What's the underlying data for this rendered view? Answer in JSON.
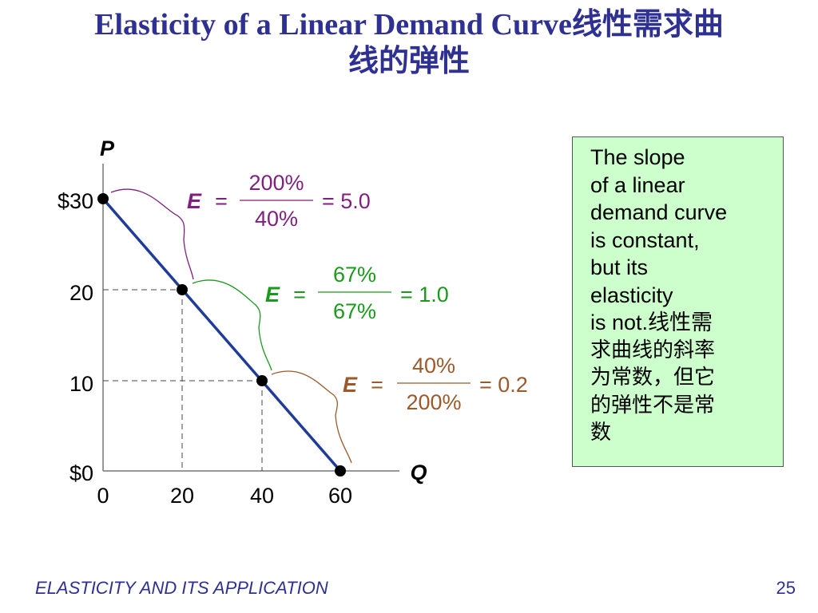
{
  "slide": {
    "title_line1": "Elasticity of a Linear Demand Curve线性需求曲",
    "title_line2": "线的弹性",
    "footer": "ELASTICITY AND ITS APPLICATION",
    "page_number": "25"
  },
  "colors": {
    "title": "#2e3192",
    "demand_line": "#1f3c99",
    "top_elasticity": "#7f1f7f",
    "middle_elasticity": "#1a9a1a",
    "bottom_elasticity": "#9c5a2a",
    "note_background": "#ccffcc"
  },
  "axes": {
    "y_label": "P",
    "x_label": "Q",
    "y_ticks": [
      "$30",
      "20",
      "10",
      "$0"
    ],
    "x_ticks": [
      "0",
      "20",
      "40",
      "60"
    ]
  },
  "demand_points": [
    {
      "q": 0,
      "p": 30
    },
    {
      "q": 20,
      "p": 20
    },
    {
      "q": 40,
      "p": 10
    },
    {
      "q": 60,
      "p": 0
    }
  ],
  "elasticities": [
    {
      "label": "E",
      "equals": "=",
      "numerator": "200%",
      "denominator": "40%",
      "result": "= 5.0"
    },
    {
      "label": "E",
      "equals": "=",
      "numerator": "67%",
      "denominator": "67%",
      "result": "= 1.0"
    },
    {
      "label": "E",
      "equals": "=",
      "numerator": "40%",
      "denominator": "200%",
      "result": "= 0.2"
    }
  ],
  "note": {
    "lines": [
      "The slope",
      "of a linear",
      "demand curve",
      "is constant,",
      "but its",
      "elasticity",
      "is not.线性需"
    ],
    "cjk_lines": [
      "求曲线的斜率",
      "为常数，但它",
      "的弹性不是常",
      "数"
    ]
  }
}
